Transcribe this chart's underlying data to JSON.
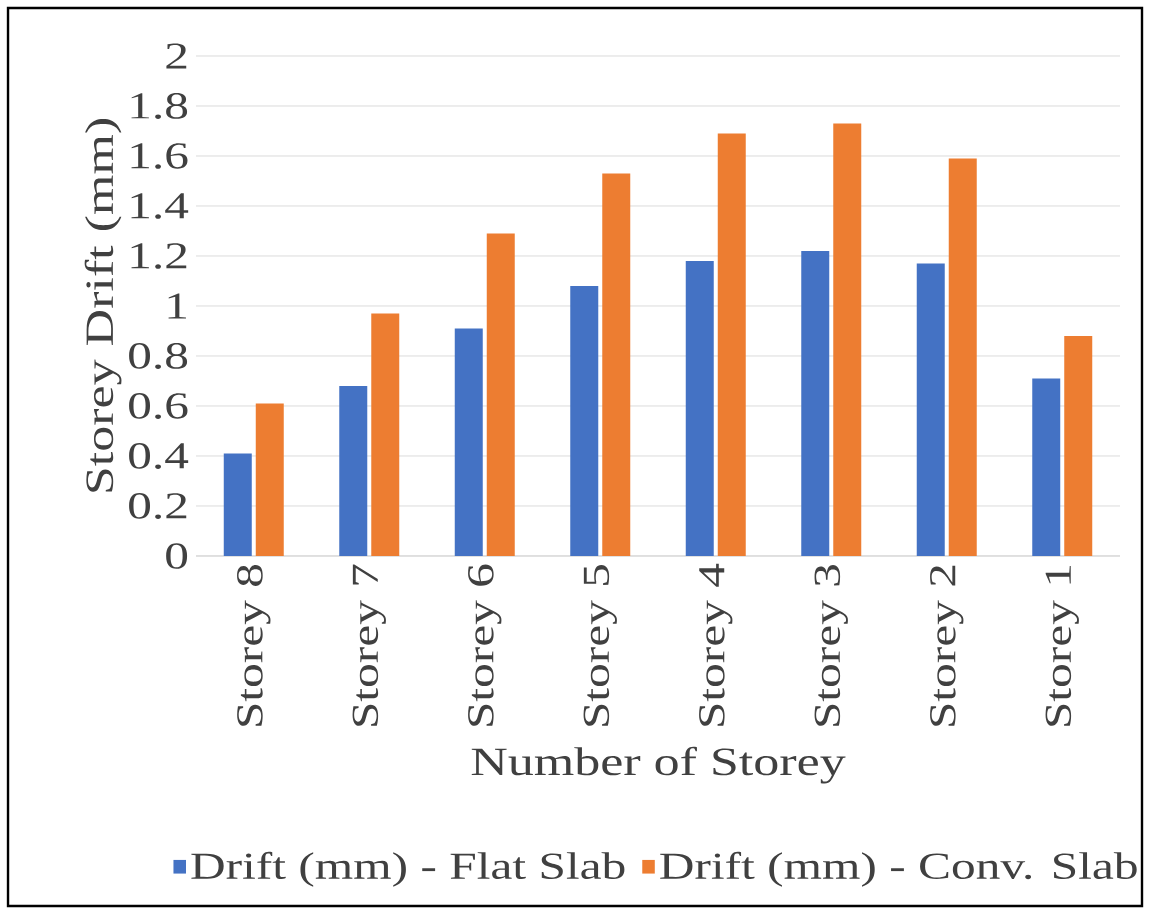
{
  "chart_data": {
    "type": "bar",
    "xlabel": "Number of Storey",
    "ylabel": "Storey Drift (mm)",
    "categories": [
      "Storey 8",
      "Storey 7",
      "Storey 6",
      "Storey 5",
      "Storey 4",
      "Storey 3",
      "Storey 2",
      "Storey 1"
    ],
    "series": [
      {
        "name": "Drift (mm) - Flat Slab",
        "color": "#4472c4",
        "values": [
          0.41,
          0.68,
          0.91,
          1.08,
          1.18,
          1.22,
          1.17,
          0.71
        ]
      },
      {
        "name": "Drift (mm) - Conv. Slab",
        "color": "#ed7d31",
        "values": [
          0.61,
          0.97,
          1.29,
          1.53,
          1.69,
          1.73,
          1.59,
          0.88
        ]
      }
    ],
    "ylim": [
      0,
      2
    ],
    "yticks": [
      0,
      0.2,
      0.4,
      0.6,
      0.8,
      1,
      1.2,
      1.4,
      1.6,
      1.8,
      2
    ],
    "grid": "y",
    "legend": "bottom"
  }
}
